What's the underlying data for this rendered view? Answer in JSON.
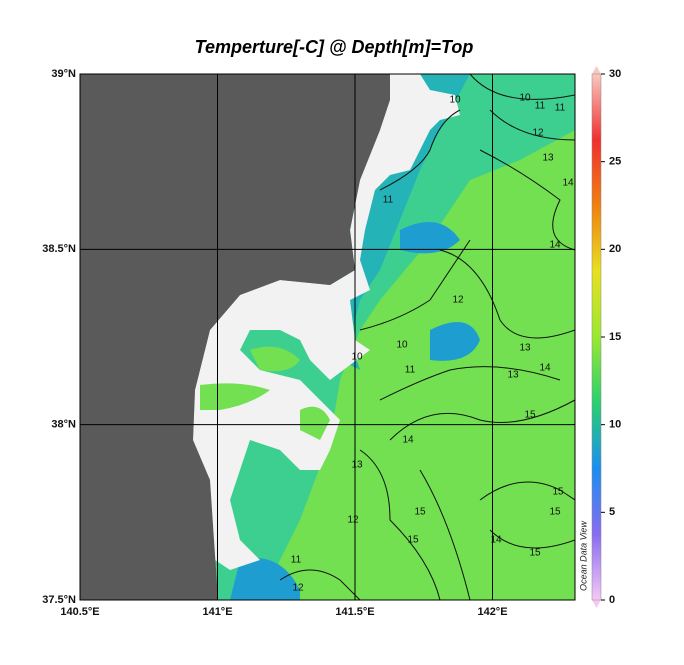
{
  "chart_data": {
    "type": "map",
    "title": "Temperture[-C] @ Depth[m]=Top",
    "xlim": [
      140.5,
      142.3
    ],
    "ylim": [
      37.5,
      39
    ],
    "xticks": [
      {
        "value": 140.5,
        "label": "140.5°E"
      },
      {
        "value": 141,
        "label": "141°E"
      },
      {
        "value": 141.5,
        "label": "141.5°E"
      },
      {
        "value": 142,
        "label": "142°E"
      }
    ],
    "yticks": [
      {
        "value": 37.5,
        "label": "37.5°N"
      },
      {
        "value": 38,
        "label": "38°N"
      },
      {
        "value": 38.5,
        "label": "38.5°N"
      },
      {
        "value": 39,
        "label": "39°N"
      }
    ],
    "grid": true,
    "zlim": [
      0,
      30
    ],
    "zticks": [
      0,
      5,
      10,
      15,
      20,
      25,
      30
    ],
    "colormap": [
      "#f4c8f4",
      "#8a6cf0",
      "#1a8ef0",
      "#2ad070",
      "#9ae830",
      "#e8e020",
      "#f08010",
      "#f03030",
      "#f8c8c0"
    ],
    "land_color": "#5a5a5a",
    "watermark": "Ocean Data View",
    "contour_labels": [
      10,
      10,
      11,
      11,
      12,
      13,
      14,
      11,
      14,
      12,
      10,
      13,
      14,
      13,
      11,
      15,
      14,
      13,
      15,
      12,
      15,
      15,
      15,
      14,
      15,
      11,
      12,
      10
    ]
  }
}
